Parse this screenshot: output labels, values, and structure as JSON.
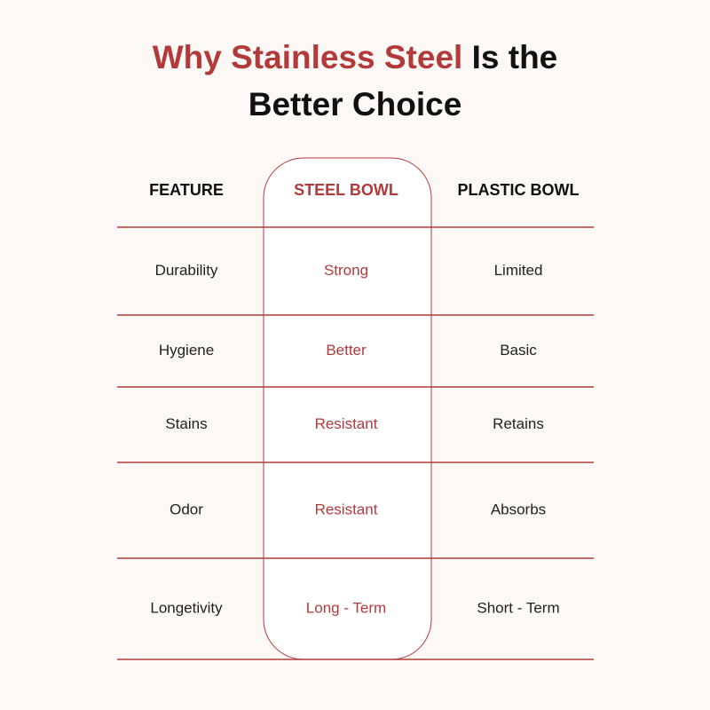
{
  "title": {
    "highlight": "Why Stainless Steel",
    "rest": "Is the Better Choice"
  },
  "table": {
    "header": [
      "FEATURE",
      "STEEL BOWL",
      "PLASTIC BOWL"
    ],
    "rows": [
      [
        "Durability",
        "Strong",
        "Limited"
      ],
      [
        "Hygiene",
        "Better",
        "Basic"
      ],
      [
        "Stains",
        "Resistant",
        "Retains"
      ],
      [
        "Odor",
        "Resistant",
        "Absorbs"
      ],
      [
        "Longetivity",
        "Long - Term",
        "Short - Term"
      ]
    ]
  }
}
